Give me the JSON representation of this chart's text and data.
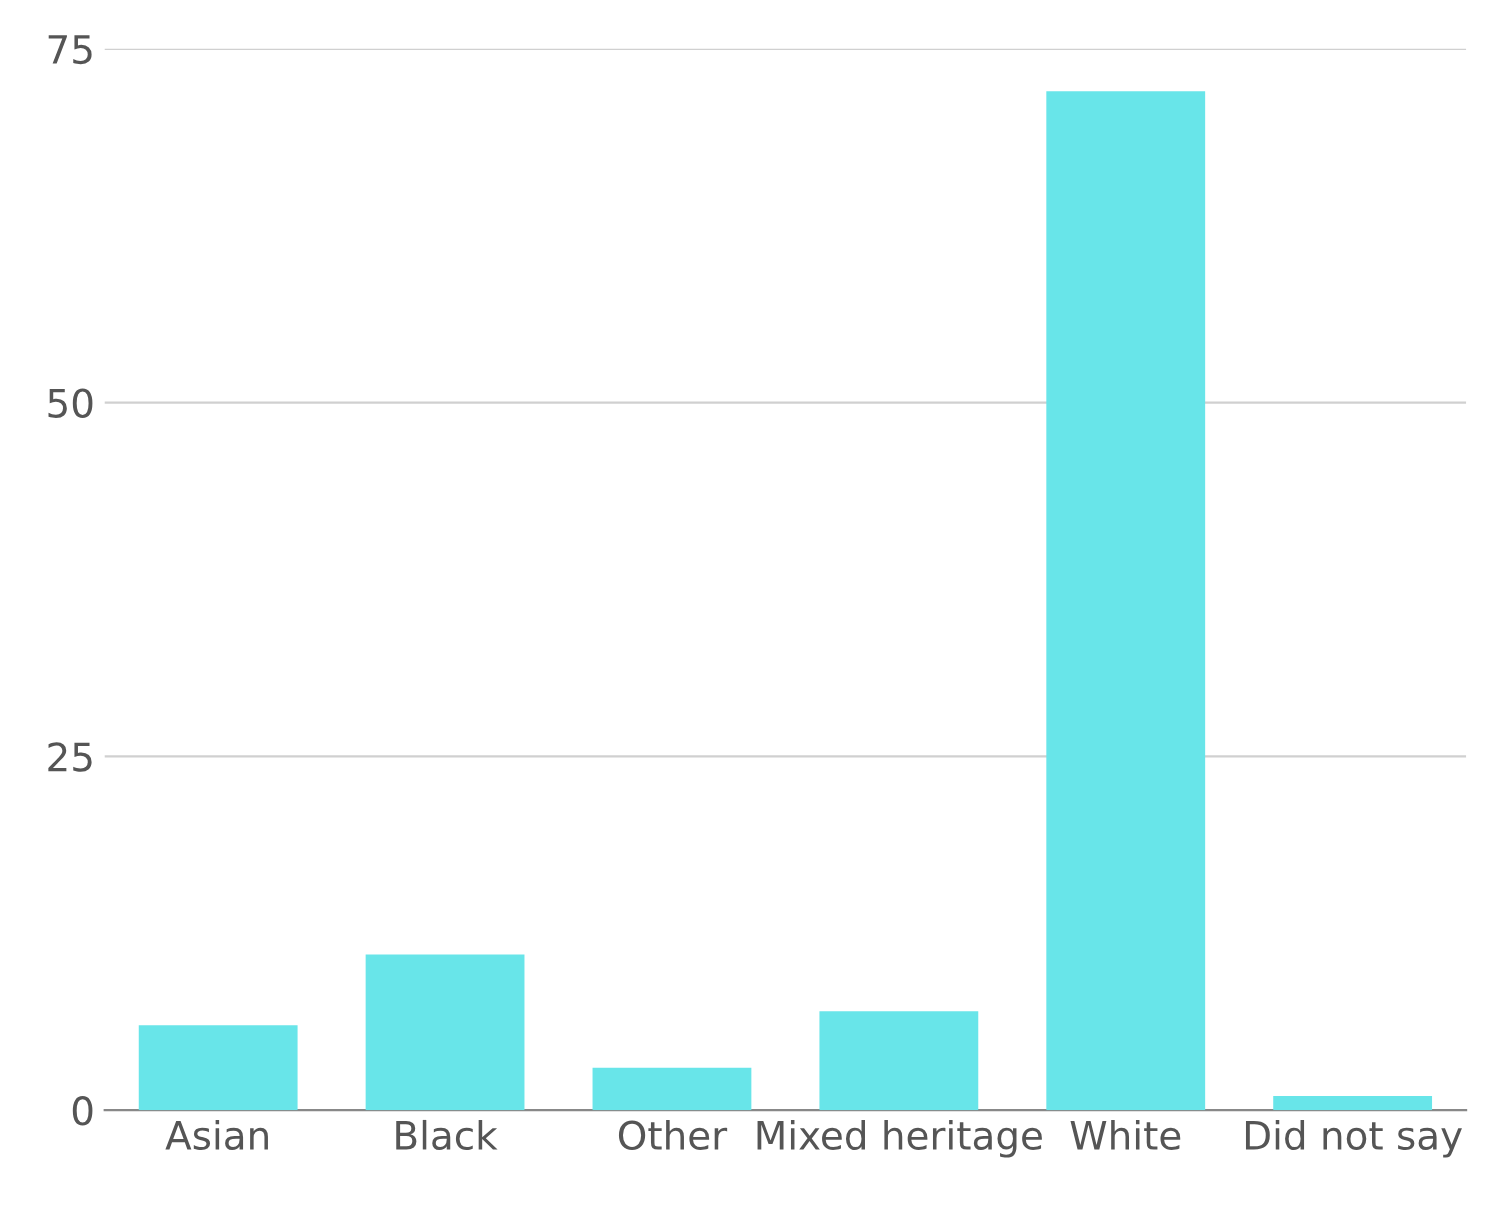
{
  "chart_data": {
    "type": "bar",
    "categories": [
      "Asian",
      "Black",
      "Other",
      "Mixed heritage",
      "White",
      "Did not say"
    ],
    "values": [
      6,
      11,
      3,
      7,
      72,
      1
    ],
    "color": "#68e5e9",
    "ylim": [
      0,
      75
    ],
    "yticks": [
      0,
      25,
      50,
      75
    ],
    "grid": "y",
    "legend": false
  }
}
